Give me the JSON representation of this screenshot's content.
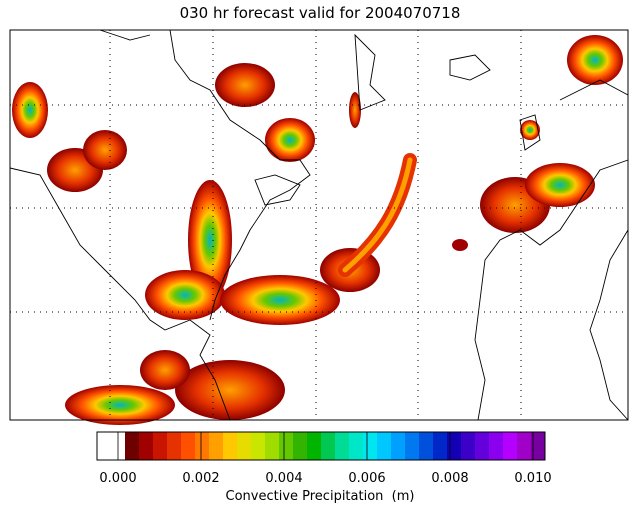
{
  "map": {
    "title": "030 hr forecast valid for 2004070718",
    "colorbar": {
      "label": "Convective Precipitation  (m)",
      "range": [
        0,
        0.01
      ],
      "ticks": [
        {
          "value": 0,
          "label": "0.000"
        },
        {
          "value": 0.002,
          "label": "0.002"
        },
        {
          "value": 0.004,
          "label": "0.004"
        },
        {
          "value": 0.006,
          "label": "0.006"
        },
        {
          "value": 0.008,
          "label": "0.008"
        },
        {
          "value": 0.01,
          "label": "0.010"
        }
      ],
      "colors": [
        "#ffffff",
        "#ffffff",
        "#6e0000",
        "#a00000",
        "#c81400",
        "#e63200",
        "#ff5000",
        "#ff7800",
        "#ffa000",
        "#ffc800",
        "#e6dc00",
        "#c8e600",
        "#a0dc00",
        "#64c800",
        "#32b400",
        "#00b400",
        "#00c850",
        "#00dc96",
        "#00e6c8",
        "#00e6f0",
        "#00c8ff",
        "#00a0ff",
        "#0078f0",
        "#0050dc",
        "#0028c8",
        "#1400b4",
        "#3c00c8",
        "#6400dc",
        "#8c00f0",
        "#b400ff",
        "#a000c8",
        "#7800a0"
      ]
    }
  }
}
